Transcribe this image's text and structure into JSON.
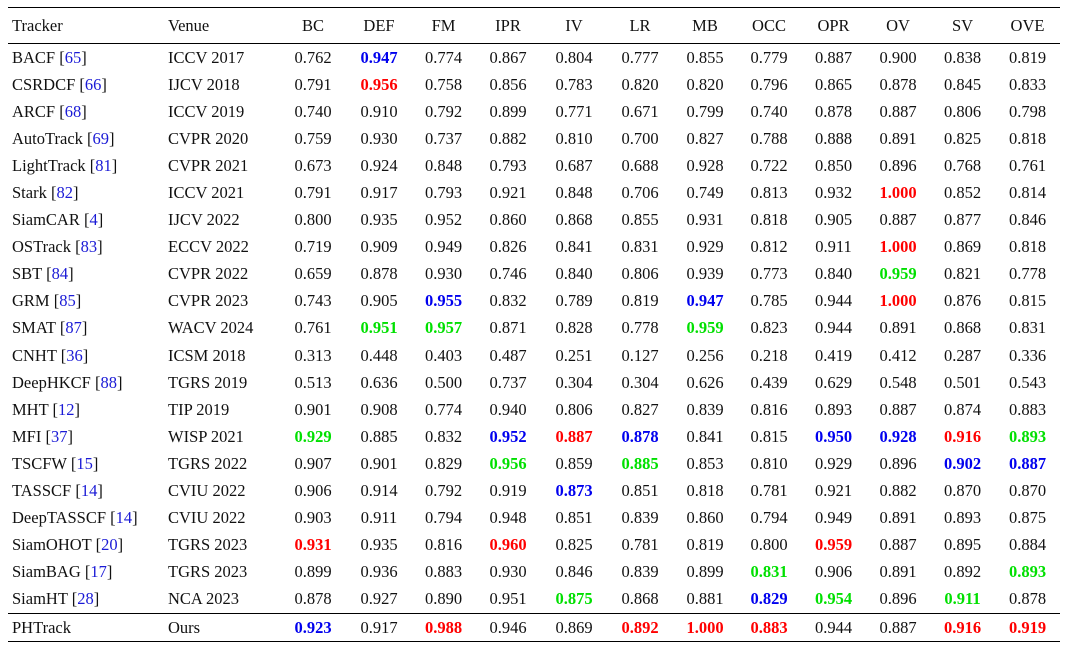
{
  "table": {
    "columns": [
      "Tracker",
      "Venue",
      "BC",
      "DEF",
      "FM",
      "IPR",
      "IV",
      "LR",
      "MB",
      "OCC",
      "OPR",
      "OV",
      "SV",
      "OVE"
    ],
    "rows": [
      {
        "tracker": "BACF",
        "ref": "65",
        "venue": "ICCV 2017",
        "values": [
          "0.762",
          "0.947",
          "0.774",
          "0.867",
          "0.804",
          "0.777",
          "0.855",
          "0.779",
          "0.887",
          "0.900",
          "0.838",
          "0.819"
        ],
        "ranks": [
          0,
          3,
          0,
          0,
          0,
          0,
          0,
          0,
          0,
          0,
          0,
          0
        ]
      },
      {
        "tracker": "CSRDCF",
        "ref": "66",
        "venue": "IJCV 2018",
        "values": [
          "0.791",
          "0.956",
          "0.758",
          "0.856",
          "0.783",
          "0.820",
          "0.820",
          "0.796",
          "0.865",
          "0.878",
          "0.845",
          "0.833"
        ],
        "ranks": [
          0,
          1,
          0,
          0,
          0,
          0,
          0,
          0,
          0,
          0,
          0,
          0
        ]
      },
      {
        "tracker": "ARCF",
        "ref": "68",
        "venue": "ICCV 2019",
        "values": [
          "0.740",
          "0.910",
          "0.792",
          "0.899",
          "0.771",
          "0.671",
          "0.799",
          "0.740",
          "0.878",
          "0.887",
          "0.806",
          "0.798"
        ],
        "ranks": [
          0,
          0,
          0,
          0,
          0,
          0,
          0,
          0,
          0,
          0,
          0,
          0
        ]
      },
      {
        "tracker": "AutoTrack",
        "ref": "69",
        "venue": "CVPR 2020",
        "values": [
          "0.759",
          "0.930",
          "0.737",
          "0.882",
          "0.810",
          "0.700",
          "0.827",
          "0.788",
          "0.888",
          "0.891",
          "0.825",
          "0.818"
        ],
        "ranks": [
          0,
          0,
          0,
          0,
          0,
          0,
          0,
          0,
          0,
          0,
          0,
          0
        ]
      },
      {
        "tracker": "LightTrack",
        "ref": "81",
        "venue": "CVPR 2021",
        "values": [
          "0.673",
          "0.924",
          "0.848",
          "0.793",
          "0.687",
          "0.688",
          "0.928",
          "0.722",
          "0.850",
          "0.896",
          "0.768",
          "0.761"
        ],
        "ranks": [
          0,
          0,
          0,
          0,
          0,
          0,
          0,
          0,
          0,
          0,
          0,
          0
        ]
      },
      {
        "tracker": "Stark",
        "ref": "82",
        "venue": "ICCV 2021",
        "values": [
          "0.791",
          "0.917",
          "0.793",
          "0.921",
          "0.848",
          "0.706",
          "0.749",
          "0.813",
          "0.932",
          "1.000",
          "0.852",
          "0.814"
        ],
        "ranks": [
          0,
          0,
          0,
          0,
          0,
          0,
          0,
          0,
          0,
          1,
          0,
          0
        ]
      },
      {
        "tracker": "SiamCAR",
        "ref": "4",
        "venue": "IJCV 2022",
        "values": [
          "0.800",
          "0.935",
          "0.952",
          "0.860",
          "0.868",
          "0.855",
          "0.931",
          "0.818",
          "0.905",
          "0.887",
          "0.877",
          "0.846"
        ],
        "ranks": [
          0,
          0,
          0,
          0,
          0,
          0,
          0,
          0,
          0,
          0,
          0,
          0
        ]
      },
      {
        "tracker": "OSTrack",
        "ref": "83",
        "venue": "ECCV 2022",
        "values": [
          "0.719",
          "0.909",
          "0.949",
          "0.826",
          "0.841",
          "0.831",
          "0.929",
          "0.812",
          "0.911",
          "1.000",
          "0.869",
          "0.818"
        ],
        "ranks": [
          0,
          0,
          0,
          0,
          0,
          0,
          0,
          0,
          0,
          1,
          0,
          0
        ]
      },
      {
        "tracker": "SBT",
        "ref": "84",
        "venue": "CVPR 2022",
        "values": [
          "0.659",
          "0.878",
          "0.930",
          "0.746",
          "0.840",
          "0.806",
          "0.939",
          "0.773",
          "0.840",
          "0.959",
          "0.821",
          "0.778"
        ],
        "ranks": [
          0,
          0,
          0,
          0,
          0,
          0,
          0,
          0,
          0,
          2,
          0,
          0
        ]
      },
      {
        "tracker": "GRM",
        "ref": "85",
        "venue": "CVPR 2023",
        "values": [
          "0.743",
          "0.905",
          "0.955",
          "0.832",
          "0.789",
          "0.819",
          "0.947",
          "0.785",
          "0.944",
          "1.000",
          "0.876",
          "0.815"
        ],
        "ranks": [
          0,
          0,
          3,
          0,
          0,
          0,
          3,
          0,
          0,
          1,
          0,
          0
        ]
      },
      {
        "tracker": "SMAT",
        "ref": "87",
        "venue": "WACV 2024",
        "values": [
          "0.761",
          "0.951",
          "0.957",
          "0.871",
          "0.828",
          "0.778",
          "0.959",
          "0.823",
          "0.944",
          "0.891",
          "0.868",
          "0.831"
        ],
        "ranks": [
          0,
          2,
          2,
          0,
          0,
          0,
          2,
          0,
          0,
          0,
          0,
          0
        ]
      },
      {
        "tracker": "CNHT",
        "ref": "36",
        "venue": "ICSM 2018",
        "values": [
          "0.313",
          "0.448",
          "0.403",
          "0.487",
          "0.251",
          "0.127",
          "0.256",
          "0.218",
          "0.419",
          "0.412",
          "0.287",
          "0.336"
        ],
        "ranks": [
          0,
          0,
          0,
          0,
          0,
          0,
          0,
          0,
          0,
          0,
          0,
          0
        ]
      },
      {
        "tracker": "DeepHKCF",
        "ref": "88",
        "venue": "TGRS 2019",
        "values": [
          "0.513",
          "0.636",
          "0.500",
          "0.737",
          "0.304",
          "0.304",
          "0.626",
          "0.439",
          "0.629",
          "0.548",
          "0.501",
          "0.543"
        ],
        "ranks": [
          0,
          0,
          0,
          0,
          0,
          0,
          0,
          0,
          0,
          0,
          0,
          0
        ]
      },
      {
        "tracker": "MHT",
        "ref": "12",
        "venue": "TIP 2019",
        "values": [
          "0.901",
          "0.908",
          "0.774",
          "0.940",
          "0.806",
          "0.827",
          "0.839",
          "0.816",
          "0.893",
          "0.887",
          "0.874",
          "0.883"
        ],
        "ranks": [
          0,
          0,
          0,
          0,
          0,
          0,
          0,
          0,
          0,
          0,
          0,
          0
        ]
      },
      {
        "tracker": "MFI",
        "ref": "37",
        "venue": "WISP 2021",
        "values": [
          "0.929",
          "0.885",
          "0.832",
          "0.952",
          "0.887",
          "0.878",
          "0.841",
          "0.815",
          "0.950",
          "0.928",
          "0.916",
          "0.893"
        ],
        "ranks": [
          2,
          0,
          0,
          3,
          1,
          3,
          0,
          0,
          3,
          3,
          1,
          2
        ]
      },
      {
        "tracker": "TSCFW",
        "ref": "15",
        "venue": "TGRS 2022",
        "values": [
          "0.907",
          "0.901",
          "0.829",
          "0.956",
          "0.859",
          "0.885",
          "0.853",
          "0.810",
          "0.929",
          "0.896",
          "0.902",
          "0.887"
        ],
        "ranks": [
          0,
          0,
          0,
          2,
          0,
          2,
          0,
          0,
          0,
          0,
          3,
          3
        ]
      },
      {
        "tracker": "TASSCF",
        "ref": "14",
        "venue": "CVIU 2022",
        "values": [
          "0.906",
          "0.914",
          "0.792",
          "0.919",
          "0.873",
          "0.851",
          "0.818",
          "0.781",
          "0.921",
          "0.882",
          "0.870",
          "0.870"
        ],
        "ranks": [
          0,
          0,
          0,
          0,
          3,
          0,
          0,
          0,
          0,
          0,
          0,
          0
        ]
      },
      {
        "tracker": "DeepTASSCF",
        "ref": "14",
        "venue": "CVIU 2022",
        "values": [
          "0.903",
          "0.911",
          "0.794",
          "0.948",
          "0.851",
          "0.839",
          "0.860",
          "0.794",
          "0.949",
          "0.891",
          "0.893",
          "0.875"
        ],
        "ranks": [
          0,
          0,
          0,
          0,
          0,
          0,
          0,
          0,
          0,
          0,
          0,
          0
        ]
      },
      {
        "tracker": "SiamOHOT",
        "ref": "20",
        "venue": "TGRS 2023",
        "values": [
          "0.931",
          "0.935",
          "0.816",
          "0.960",
          "0.825",
          "0.781",
          "0.819",
          "0.800",
          "0.959",
          "0.887",
          "0.895",
          "0.884"
        ],
        "ranks": [
          1,
          0,
          0,
          1,
          0,
          0,
          0,
          0,
          1,
          0,
          0,
          0
        ]
      },
      {
        "tracker": "SiamBAG",
        "ref": "17",
        "venue": "TGRS 2023",
        "values": [
          "0.899",
          "0.936",
          "0.883",
          "0.930",
          "0.846",
          "0.839",
          "0.899",
          "0.831",
          "0.906",
          "0.891",
          "0.892",
          "0.893"
        ],
        "ranks": [
          0,
          0,
          0,
          0,
          0,
          0,
          0,
          2,
          0,
          0,
          0,
          2
        ]
      },
      {
        "tracker": "SiamHT",
        "ref": "28",
        "venue": "NCA 2023",
        "values": [
          "0.878",
          "0.927",
          "0.890",
          "0.951",
          "0.875",
          "0.868",
          "0.881",
          "0.829",
          "0.954",
          "0.896",
          "0.911",
          "0.878"
        ],
        "ranks": [
          0,
          0,
          0,
          0,
          2,
          0,
          0,
          3,
          2,
          0,
          2,
          0
        ]
      },
      {
        "tracker": "PHTrack",
        "ref": "",
        "venue": "Ours",
        "values": [
          "0.923",
          "0.917",
          "0.988",
          "0.946",
          "0.869",
          "0.892",
          "1.000",
          "0.883",
          "0.944",
          "0.887",
          "0.916",
          "0.919"
        ],
        "ranks": [
          3,
          0,
          1,
          0,
          0,
          1,
          1,
          1,
          0,
          0,
          1,
          1
        ]
      }
    ]
  }
}
